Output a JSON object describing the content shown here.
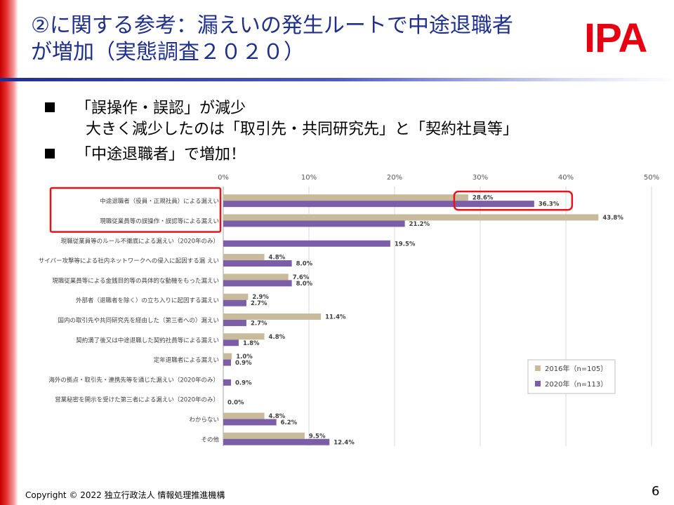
{
  "slide": {
    "title_line1": "②に関する参考：漏えいの発生ルートで中途退職者",
    "title_line2": "が増加（実態調査２０２０）",
    "logo": "IPA",
    "bullets": [
      {
        "text": "「誤操作・誤認」が減少",
        "sub": "大きく減少したのは「取引先・共同研究先」と「契約社員等」"
      },
      {
        "text": "「中途退職者」で増加！"
      }
    ],
    "footer": "Copyright © 2022 独立行政法人 情報処理推進機構",
    "page_number": "6"
  },
  "chart_data": {
    "type": "bar",
    "orientation": "horizontal",
    "xlim": [
      0,
      50
    ],
    "x_ticks": [
      "0%",
      "10%",
      "20%",
      "30%",
      "40%",
      "50%"
    ],
    "grid": true,
    "legend_position": "bottom-right",
    "categories": [
      "中途退職者（役員・正規社員）による漏えい",
      "現職従業員等の誤操作・誤認等による漏えい",
      "現職従業員等のルール不徹底による漏えい（2020年のみ）",
      "サイバー攻撃等による社内ネットワークへの侵入に起因する漏 えい",
      "現職従業員等による金銭目的等の具体的な動機をもった漏えい",
      "外部者（退職者を除く）の立ち入りに起因する漏えい",
      "国内の取引先や共同研究先を経由した（第三者への）漏えい",
      "契約満了後又は中途退職した契約社員等による漏えい",
      "定年退職者による漏えい",
      "海外の拠点・取引先・連携先等を通じた漏えい（2020年のみ）",
      "営業秘密を開示を受けた第三者による漏えい（2020年のみ）",
      "わからない",
      "その他"
    ],
    "series": [
      {
        "name": "2016年（n=105）",
        "color": "#c8bb9b",
        "values": [
          28.6,
          43.8,
          null,
          4.8,
          7.6,
          2.9,
          11.4,
          4.8,
          1.0,
          null,
          null,
          4.8,
          9.5
        ],
        "labels": [
          "28.6%",
          "43.8%",
          "",
          "4.8%",
          "7.6%",
          "2.9%",
          "11.4%",
          "4.8%",
          "1.0%",
          "",
          "",
          "4.8%",
          "9.5%"
        ]
      },
      {
        "name": "2020年（n=113）",
        "color": "#7b5ea7",
        "values": [
          36.3,
          21.2,
          19.5,
          8.0,
          8.0,
          2.7,
          2.7,
          1.8,
          0.9,
          0.9,
          0.0,
          6.2,
          12.4
        ],
        "labels": [
          "36.3%",
          "21.2%",
          "19.5%",
          "8.0%",
          "8.0%",
          "2.7%",
          "2.7%",
          "1.8%",
          "0.9%",
          "0.9%",
          "0.0%",
          "6.2%",
          "12.4%"
        ]
      }
    ],
    "highlights": [
      "category-label-box",
      "value-label-box"
    ],
    "highlight_color": "#e8141a"
  }
}
